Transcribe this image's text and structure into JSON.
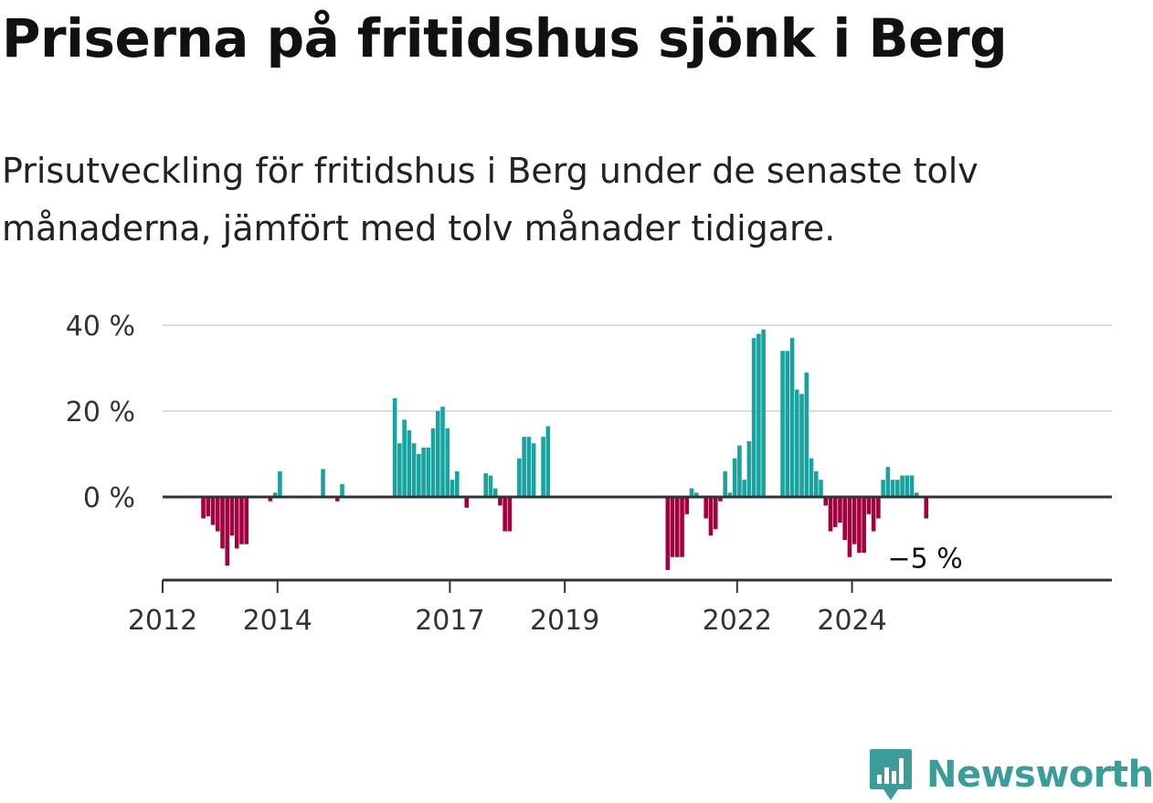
{
  "title": "Priserna på fritidshus sjönk i Berg",
  "subtitle": "Prisutveckling för fritidshus i Berg under de senaste tolv månaderna, jämfört med tolv månader tidigare.",
  "brand": {
    "name": "Newsworthy",
    "color": "#3a9d9a"
  },
  "colors": {
    "positive": "#18a3a0",
    "negative": "#a3003f",
    "grid": "#dddddd",
    "axis": "#333333"
  },
  "chart_data": {
    "type": "bar",
    "time_unit": "month",
    "first_month": "2012-01",
    "ylim": [
      -20,
      40
    ],
    "yticks": [
      0,
      20,
      40
    ],
    "ytick_labels": [
      "0 %",
      "20 %",
      "40 %"
    ],
    "xticks": [
      "2012",
      "2014",
      "2017",
      "2019",
      "2022",
      "2024"
    ],
    "grid": true,
    "end_label": "−5 %",
    "values": [
      null,
      null,
      null,
      null,
      null,
      null,
      null,
      null,
      -5,
      -4.5,
      -6.5,
      -8,
      -12,
      -16,
      -9,
      -12,
      -11,
      -11,
      null,
      null,
      null,
      null,
      -1,
      1,
      6,
      null,
      null,
      null,
      null,
      null,
      null,
      null,
      null,
      6.5,
      null,
      null,
      -1,
      3,
      null,
      null,
      null,
      null,
      null,
      null,
      null,
      null,
      null,
      null,
      23,
      12.5,
      18,
      15.5,
      12.5,
      10,
      11.5,
      11.5,
      16,
      20,
      21,
      16,
      4,
      6,
      null,
      -2.5,
      null,
      null,
      null,
      5.5,
      5,
      2,
      -2,
      -8,
      -8,
      null,
      9,
      14,
      14,
      12.5,
      null,
      14,
      16.5,
      null,
      null,
      null,
      null,
      null,
      null,
      null,
      null,
      null,
      null,
      null,
      null,
      null,
      null,
      null,
      null,
      null,
      null,
      null,
      null,
      null,
      null,
      null,
      null,
      -17,
      -14,
      -14,
      -14,
      -4,
      2,
      1,
      null,
      -5,
      -9,
      -7.5,
      -1,
      6,
      1,
      9,
      12,
      4,
      13,
      37,
      38,
      39,
      null,
      null,
      null,
      34,
      34,
      37,
      25,
      24,
      29,
      9,
      6,
      4,
      -2,
      -8,
      -7,
      -6,
      -10,
      -14,
      -11,
      -13,
      -13,
      -4,
      -8,
      -5,
      4,
      7,
      4,
      4,
      5,
      5,
      5,
      1,
      null,
      -5
    ]
  }
}
